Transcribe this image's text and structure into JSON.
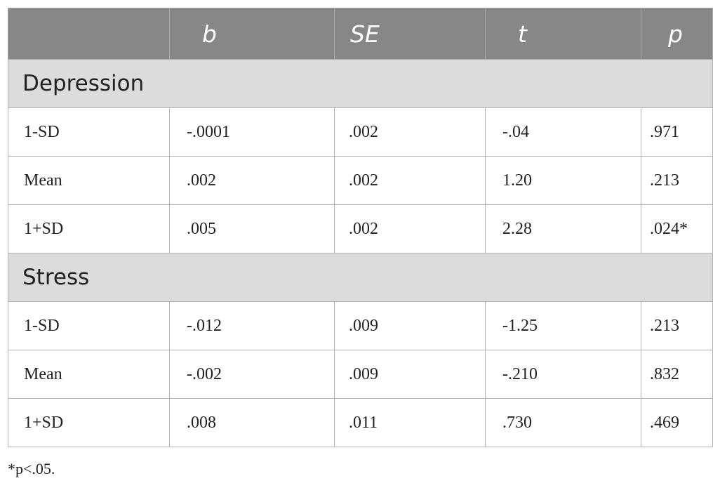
{
  "table": {
    "headers": [
      "",
      "b",
      "SE",
      "t",
      "p"
    ],
    "sections": [
      {
        "title": "Depression",
        "rows": [
          {
            "label": "1-SD",
            "b": "-.0001",
            "se": ".002",
            "t": "-.04",
            "p": ".971"
          },
          {
            "label": "Mean",
            "b": ".002",
            "se": ".002",
            "t": "1.20",
            "p": ".213"
          },
          {
            "label": "1+SD",
            "b": ".005",
            "se": ".002",
            "t": "2.28",
            "p": ".024*"
          }
        ]
      },
      {
        "title": "Stress",
        "rows": [
          {
            "label": "1-SD",
            "b": "-.012",
            "se": ".009",
            "t": "-1.25",
            "p": ".213"
          },
          {
            "label": "Mean",
            "b": "-.002",
            "se": ".009",
            "t": "-.210",
            "p": ".832"
          },
          {
            "label": "1+SD",
            "b": ".008",
            "se": ".011",
            "t": ".730",
            "p": ".469"
          }
        ]
      }
    ]
  },
  "footnote": "*p<.05.",
  "colors": {
    "header_bg": "#878787",
    "section_bg": "#dcdcdc",
    "border": "#b4b4b4"
  }
}
